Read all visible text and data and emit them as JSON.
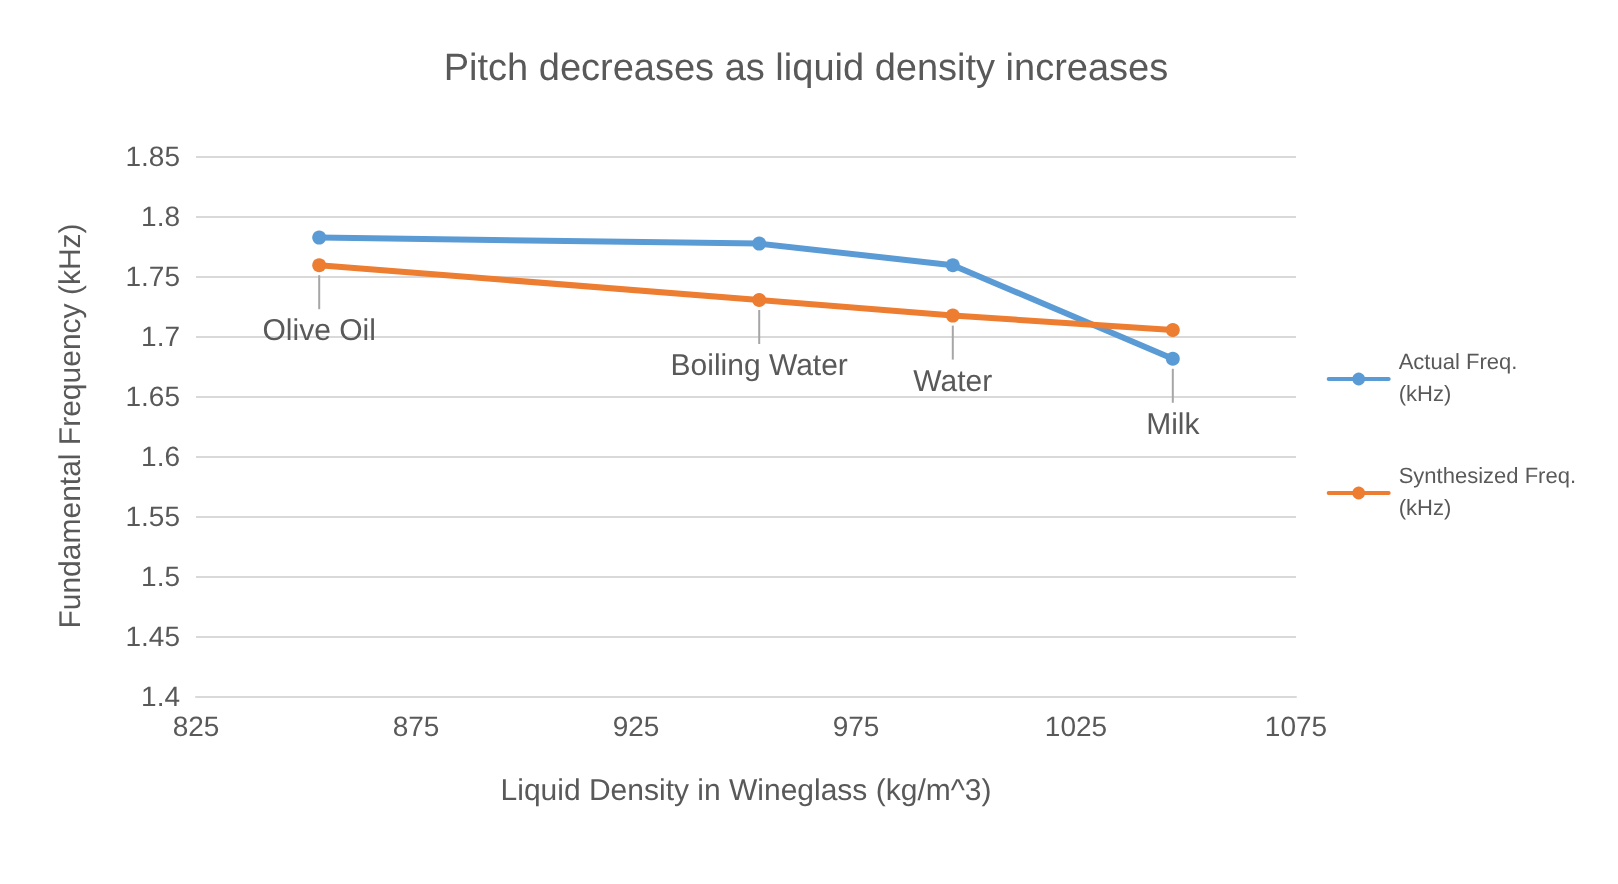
{
  "chart_data": {
    "type": "line",
    "title": "Pitch decreases as liquid density increases",
    "xlabel": "Liquid Density in Wineglass (kg/m^3)",
    "ylabel": "Fundamental Frequency (kHz)",
    "x": [
      853,
      953,
      997,
      1047
    ],
    "series": [
      {
        "name": "Actual Freq. (kHz)",
        "color": "#5b9bd5",
        "values": [
          1.782,
          1.777,
          1.759,
          1.681
        ]
      },
      {
        "name": "Synthesized Freq. (kHz)",
        "color": "#ed7d31",
        "values": [
          1.759,
          1.73,
          1.717,
          1.705
        ]
      }
    ],
    "annotations": [
      {
        "text": "Olive Oil",
        "x": 853,
        "y": 1.759
      },
      {
        "text": "Boiling Water",
        "x": 953,
        "y": 1.73
      },
      {
        "text": "Water",
        "x": 997,
        "y": 1.717
      },
      {
        "text": "Milk",
        "x": 1047,
        "y": 1.681
      }
    ],
    "xlim": [
      825,
      1075
    ],
    "xticks": [
      825,
      875,
      925,
      975,
      1025,
      1075
    ],
    "ylim": [
      1.4,
      1.85
    ],
    "yticks": [
      1.4,
      1.45,
      1.5,
      1.55,
      1.6,
      1.65,
      1.7,
      1.75,
      1.8,
      1.85
    ],
    "grid": "y",
    "legend": "right",
    "marker": "circle",
    "line_style": "solid"
  }
}
